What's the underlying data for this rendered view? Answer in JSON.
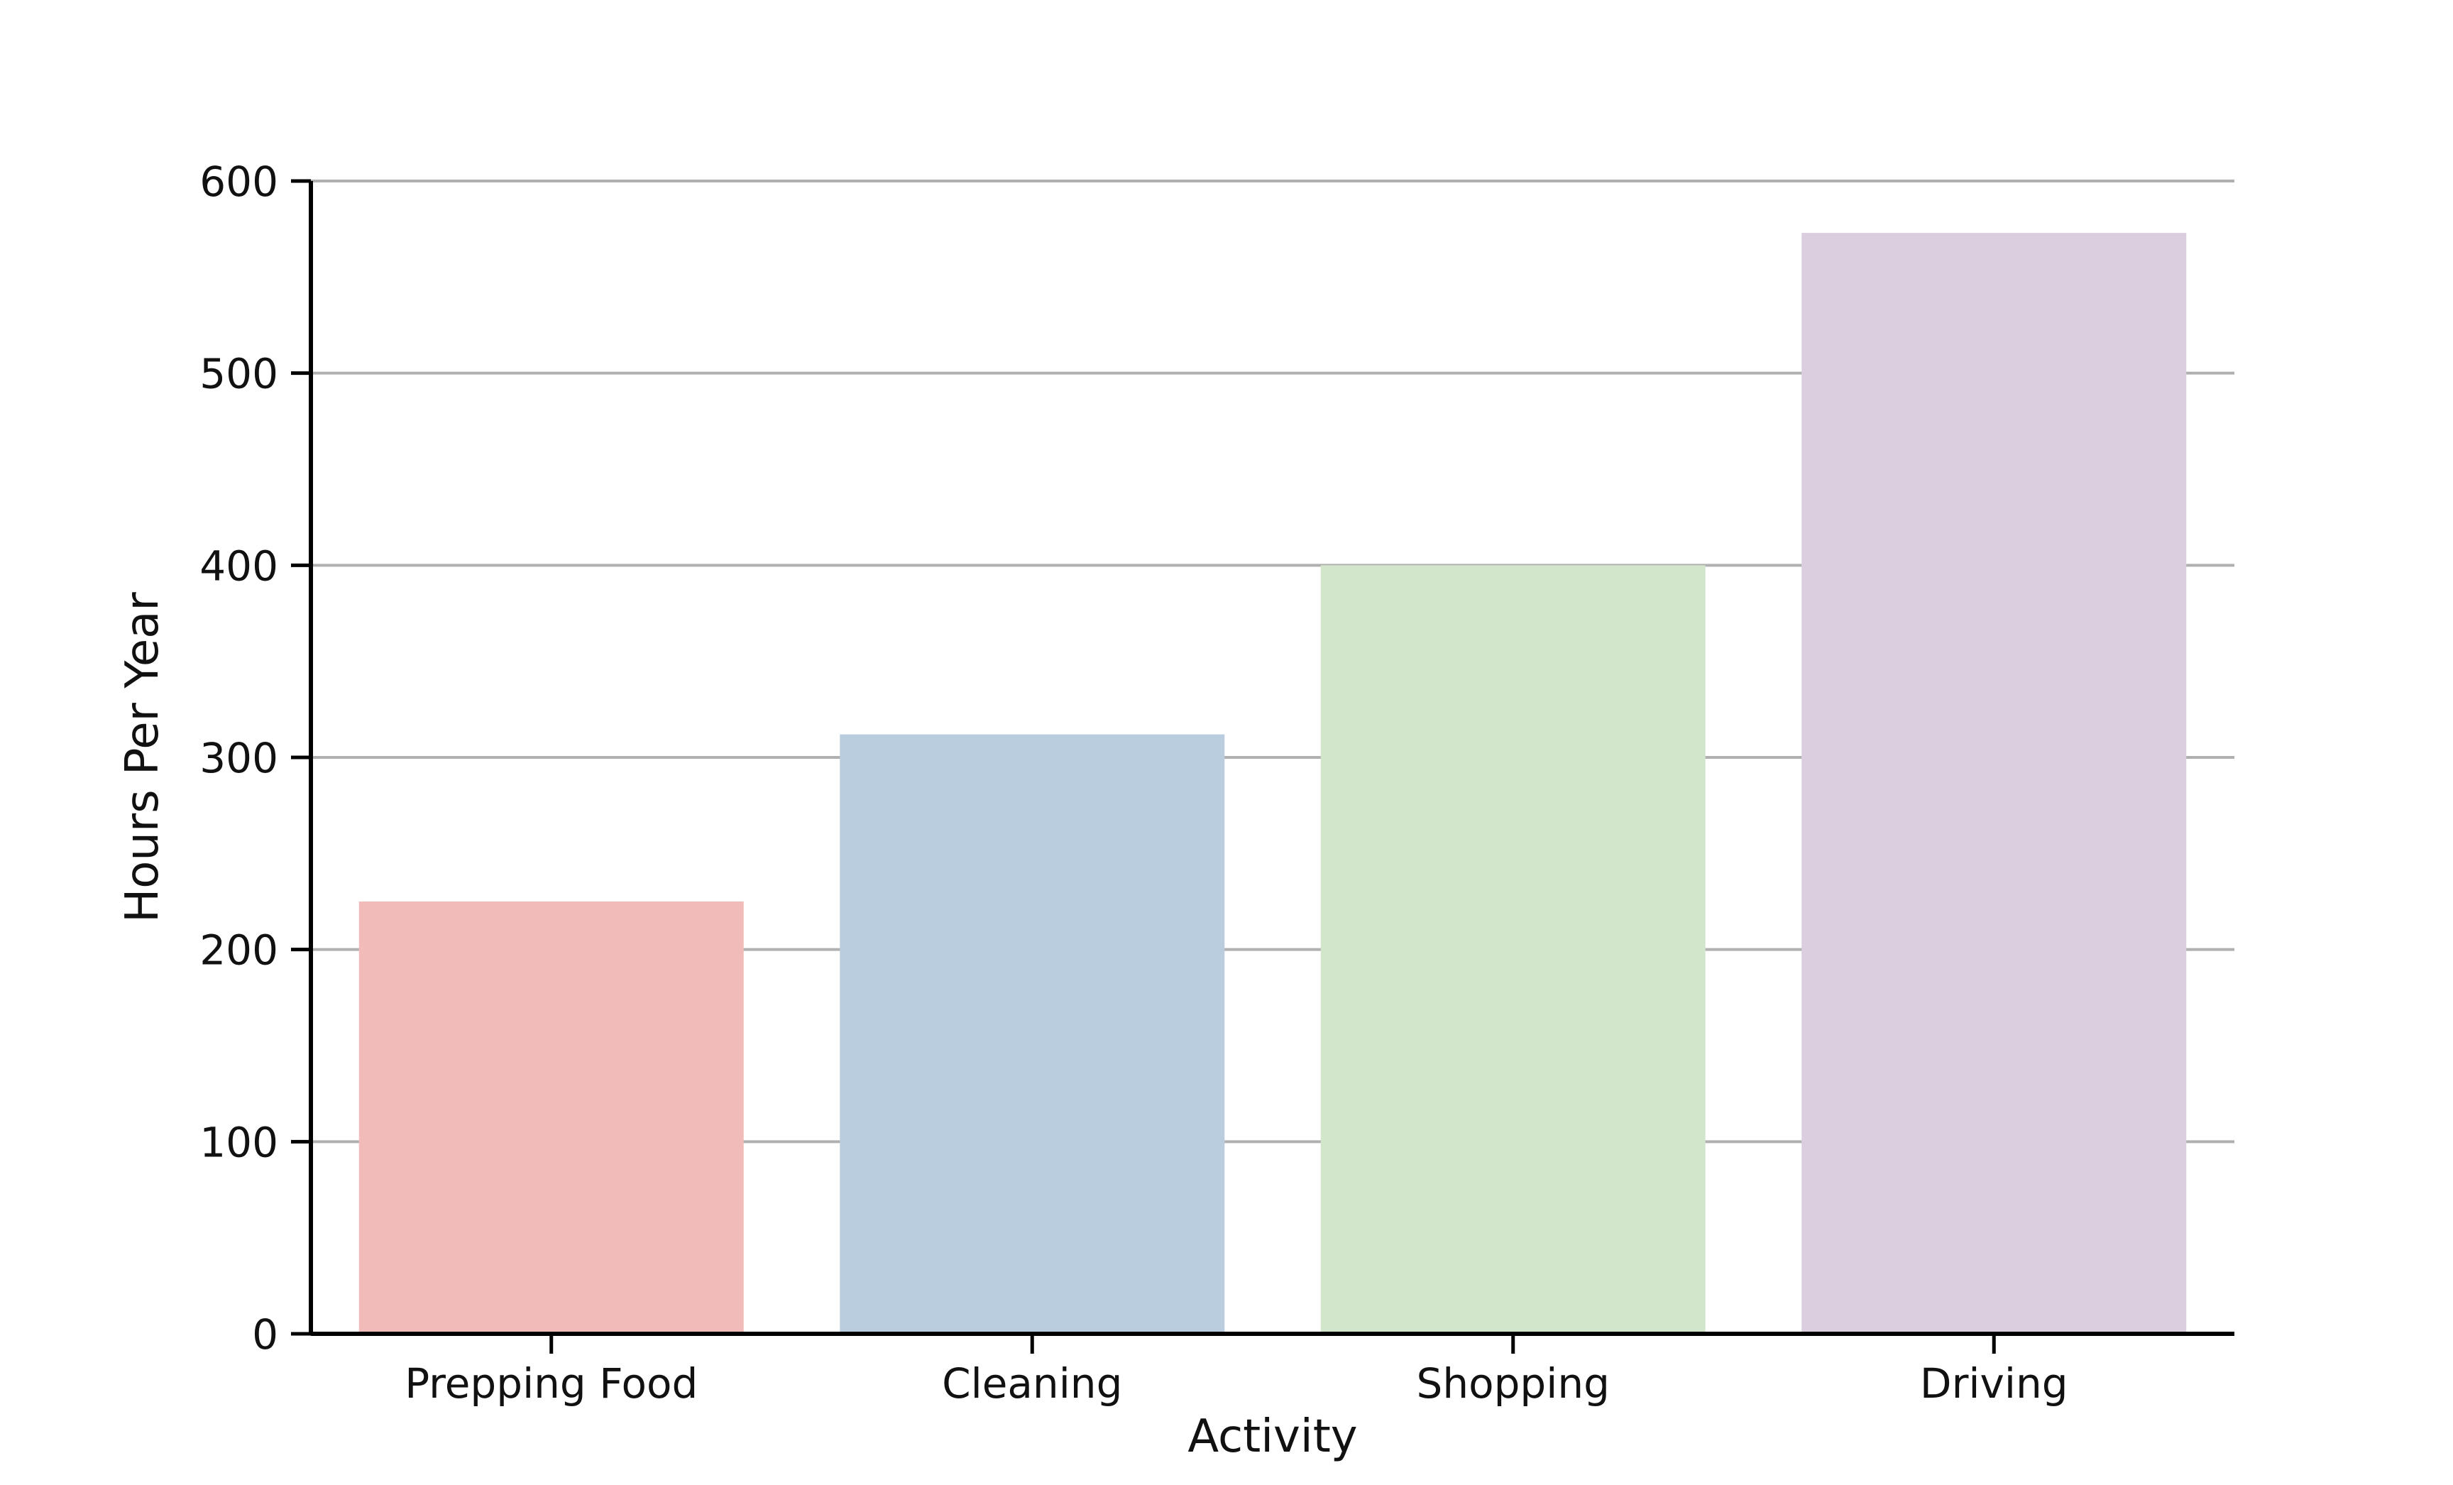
{
  "chart_data": {
    "type": "bar",
    "title": "",
    "xlabel": "Activity",
    "ylabel": "Hours Per Year",
    "categories": [
      "Prepping Food",
      "Cleaning",
      "Shopping",
      "Driving"
    ],
    "values": [
      225,
      312,
      400,
      573
    ],
    "colors": [
      "#f0bbb9",
      "#bacddf",
      "#d1e6cb",
      "#dacedf"
    ],
    "ylim": [
      0,
      600
    ],
    "yticks": [
      0,
      100,
      200,
      300,
      400,
      500,
      600
    ],
    "grid": "horizontal",
    "legend": "none"
  }
}
